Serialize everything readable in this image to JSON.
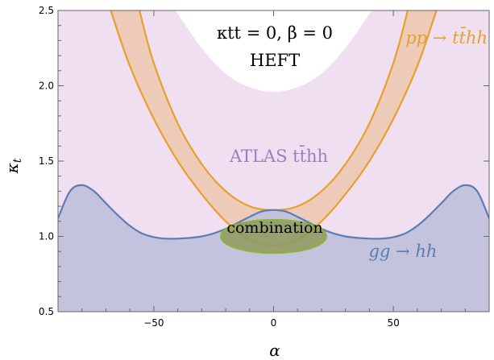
{
  "chart_data": {
    "type": "area",
    "xlabel": "α",
    "ylabel": "κt",
    "xlim": [
      -90,
      90
    ],
    "ylim": [
      0.5,
      2.5
    ],
    "x_ticks": [
      -50,
      0,
      50
    ],
    "y_ticks": [
      0.5,
      1.0,
      1.5,
      2.0,
      2.5
    ],
    "x_tick_labels": [
      "−50",
      "0",
      "50"
    ],
    "y_tick_labels": [
      "0.5",
      "1.0",
      "1.5",
      "2.0",
      "2.5"
    ],
    "grid": false,
    "colors": {
      "heft_region": "#f0dff0",
      "gghh": "#5b7db5",
      "gghh_fill": "#c2c2dd",
      "tthh": "#e8a02d",
      "tthh_fill": "#eecab8",
      "combination": "#8db33a",
      "combination_fill": "#8f9a5b",
      "atlas_label": "#9b80bd"
    },
    "annotations": {
      "heft_title_kappa": "κtt = 0, β = 0",
      "heft_title": "HEFT",
      "atlas_label": "ATLAS tt̄hh",
      "tthh_label": "pp → tt̄hh",
      "gghh_label": "gg → hh",
      "combination_label": "combination"
    },
    "series": [
      {
        "name": "gg → hh",
        "x": [
          -90,
          -85,
          -80,
          -75,
          -70,
          -65,
          -60,
          -55,
          -50,
          -45,
          -40,
          -35,
          -30,
          -25,
          -20,
          -15,
          -10,
          -5,
          0,
          5,
          10,
          15,
          20,
          25,
          30,
          35,
          40,
          45,
          50,
          55,
          60,
          65,
          70,
          75,
          80,
          85,
          90
        ],
        "y": [
          1.12,
          1.3,
          1.34,
          1.3,
          1.22,
          1.14,
          1.07,
          1.02,
          0.995,
          0.985,
          0.985,
          0.99,
          1.0,
          1.02,
          1.05,
          1.09,
          1.13,
          1.165,
          1.175,
          1.165,
          1.13,
          1.09,
          1.05,
          1.02,
          1.0,
          0.99,
          0.985,
          0.985,
          0.995,
          1.02,
          1.07,
          1.14,
          1.22,
          1.3,
          1.34,
          1.3,
          1.12
        ]
      },
      {
        "name": "pp → tt̄hh",
        "x": [
          -68,
          -60,
          -50,
          -40,
          -30,
          -20,
          -10,
          0,
          10,
          20,
          30,
          40,
          50,
          60,
          68
        ],
        "y_lower": [
          2.5,
          2.13,
          1.78,
          1.5,
          1.28,
          1.1,
          0.98,
          0.94,
          0.98,
          1.1,
          1.28,
          1.5,
          1.78,
          2.13,
          2.5
        ],
        "x_upper": [
          -56,
          -50,
          -40,
          -30,
          -20,
          -10,
          0,
          10,
          20,
          30,
          40,
          50,
          56
        ],
        "y_upper": [
          2.5,
          2.15,
          1.75,
          1.48,
          1.3,
          1.2,
          1.175,
          1.2,
          1.3,
          1.48,
          1.75,
          2.15,
          2.5
        ]
      },
      {
        "name": "HEFT",
        "x": [
          -41,
          -30,
          -20,
          -10,
          0,
          10,
          20,
          30,
          41
        ],
        "y": [
          2.5,
          2.25,
          2.08,
          1.99,
          1.96,
          1.99,
          2.08,
          2.25,
          2.5
        ]
      },
      {
        "name": "combination",
        "center": [
          0,
          1.0
        ],
        "half_width": 22,
        "half_height": 0.11
      }
    ]
  }
}
